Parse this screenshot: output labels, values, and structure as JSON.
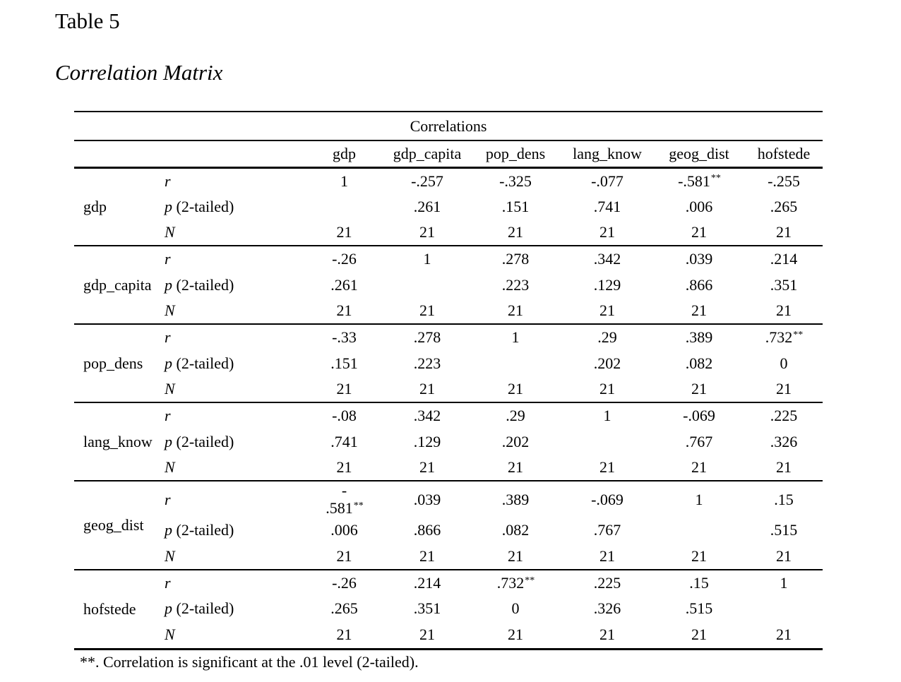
{
  "heading": {
    "label": "Table 5",
    "caption": "Correlation Matrix"
  },
  "colors": {
    "text": "#000000",
    "background": "#ffffff",
    "rule": "#000000"
  },
  "table": {
    "title": "Correlations",
    "columns": [
      "gdp",
      "gdp_capita",
      "pop_dens",
      "lang_know",
      "geog_dist",
      "hofstede"
    ],
    "row_labels": {
      "r": "r",
      "p_italic": "p",
      "p_rest": " (2-tailed)",
      "n": "N"
    },
    "footnote": "**. Correlation is significant at the .01 level (2-tailed).",
    "blocks": [
      {
        "variable": "gdp",
        "r": [
          {
            "v": "1"
          },
          {
            "v": "-.257"
          },
          {
            "v": "-.325"
          },
          {
            "v": "-.077"
          },
          {
            "v": "-.581",
            "sup": "**"
          },
          {
            "v": "-.255"
          }
        ],
        "p": [
          "",
          ".261",
          ".151",
          ".741",
          ".006",
          ".265"
        ],
        "n": [
          "21",
          "21",
          "21",
          "21",
          "21",
          "21"
        ]
      },
      {
        "variable": "gdp_capita",
        "r": [
          {
            "v": "-.26"
          },
          {
            "v": "1"
          },
          {
            "v": ".278"
          },
          {
            "v": ".342"
          },
          {
            "v": ".039"
          },
          {
            "v": ".214"
          }
        ],
        "p": [
          ".261",
          "",
          ".223",
          ".129",
          ".866",
          ".351"
        ],
        "n": [
          "21",
          "21",
          "21",
          "21",
          "21",
          "21"
        ]
      },
      {
        "variable": "pop_dens",
        "r": [
          {
            "v": "-.33"
          },
          {
            "v": ".278"
          },
          {
            "v": "1"
          },
          {
            "v": ".29"
          },
          {
            "v": ".389"
          },
          {
            "v": ".732",
            "sup": "**"
          }
        ],
        "p": [
          ".151",
          ".223",
          "",
          ".202",
          ".082",
          "0"
        ],
        "n": [
          "21",
          "21",
          "21",
          "21",
          "21",
          "21"
        ]
      },
      {
        "variable": "lang_know",
        "r": [
          {
            "v": "-.08"
          },
          {
            "v": ".342"
          },
          {
            "v": ".29"
          },
          {
            "v": "1"
          },
          {
            "v": "-.069"
          },
          {
            "v": ".225"
          }
        ],
        "p": [
          ".741",
          ".129",
          ".202",
          "",
          ".767",
          ".326"
        ],
        "n": [
          "21",
          "21",
          "21",
          "21",
          "21",
          "21"
        ]
      },
      {
        "variable": "geog_dist",
        "r": [
          {
            "v": "-.581",
            "sup": "**",
            "wrap": true
          },
          {
            "v": ".039"
          },
          {
            "v": ".389"
          },
          {
            "v": "-.069"
          },
          {
            "v": "1"
          },
          {
            "v": ".15"
          }
        ],
        "p": [
          ".006",
          ".866",
          ".082",
          ".767",
          "",
          ".515"
        ],
        "n": [
          "21",
          "21",
          "21",
          "21",
          "21",
          "21"
        ]
      },
      {
        "variable": "hofstede",
        "r": [
          {
            "v": "-.26"
          },
          {
            "v": ".214"
          },
          {
            "v": ".732",
            "sup": "**"
          },
          {
            "v": ".225"
          },
          {
            "v": ".15"
          },
          {
            "v": "1"
          }
        ],
        "p": [
          ".265",
          ".351",
          "0",
          ".326",
          ".515",
          ""
        ],
        "n": [
          "21",
          "21",
          "21",
          "21",
          "21",
          "21"
        ]
      }
    ]
  }
}
